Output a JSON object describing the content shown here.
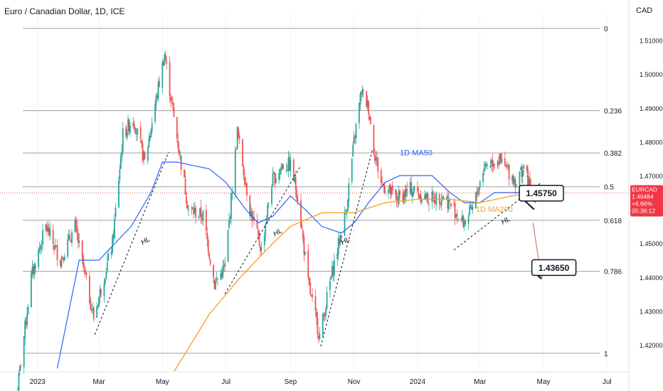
{
  "header": {
    "title": "Euro / Canadian Dollar, 1D, ICE",
    "currency": "CAD"
  },
  "colors": {
    "up": "#26a69a",
    "down": "#ef5350",
    "ma50": "#2962ff",
    "ma200": "#f5a623",
    "fib": "#9e9e9e",
    "price_line": "#f23645",
    "axis_text": "#131722"
  },
  "price_tag": {
    "symbol": "EURCAD",
    "price": "1.46484",
    "change": "+6.66%",
    "countdown": "05:36:12"
  },
  "chart_data": {
    "type": "candlestick",
    "title": "Euro / Canadian Dollar, 1D, ICE",
    "ylim": [
      1.412,
      1.5135
    ],
    "xlim": [
      "2022-12-11",
      "2024-07-22"
    ],
    "y_ticks": [
      "1.51000",
      "1.50000",
      "1.49000",
      "1.48000",
      "1.47000",
      "1.46000",
      "1.45000",
      "1.44000",
      "1.43000",
      "1.42000"
    ],
    "x_ticks": [
      {
        "label": "2023",
        "date": "2023-01-01"
      },
      {
        "label": "Mar",
        "date": "2023-03-01"
      },
      {
        "label": "May",
        "date": "2023-05-01"
      },
      {
        "label": "Jul",
        "date": "2023-07-01"
      },
      {
        "label": "Sep",
        "date": "2023-09-01"
      },
      {
        "label": "Nov",
        "date": "2023-11-01"
      },
      {
        "label": "2024",
        "date": "2024-01-01"
      },
      {
        "label": "Mar",
        "date": "2024-03-01"
      },
      {
        "label": "May",
        "date": "2024-05-01"
      },
      {
        "label": "Jul",
        "date": "2024-07-01"
      }
    ],
    "fib_levels": [
      {
        "label": "0",
        "price": 1.5135
      },
      {
        "label": "0.236",
        "price": 1.4892
      },
      {
        "label": "0.382",
        "price": 1.4767
      },
      {
        "label": "0.5",
        "price": 1.4667
      },
      {
        "label": "0.618",
        "price": 1.4568
      },
      {
        "label": "0.786",
        "price": 1.4417
      },
      {
        "label": "1",
        "price": 1.4175
      }
    ],
    "last_price": 1.46484,
    "price_anchors": [
      [
        "2022-12-12",
        1.405
      ],
      [
        "2022-12-26",
        1.44
      ],
      [
        "2023-01-09",
        1.455
      ],
      [
        "2023-01-23",
        1.445
      ],
      [
        "2023-02-06",
        1.455
      ],
      [
        "2023-02-24",
        1.428
      ],
      [
        "2023-03-14",
        1.45
      ],
      [
        "2023-03-24",
        1.482
      ],
      [
        "2023-04-03",
        1.487
      ],
      [
        "2023-04-14",
        1.474
      ],
      [
        "2023-04-27",
        1.496
      ],
      [
        "2023-05-03",
        1.506
      ],
      [
        "2023-05-12",
        1.487
      ],
      [
        "2023-05-26",
        1.46
      ],
      [
        "2023-06-09",
        1.458
      ],
      [
        "2023-06-20",
        1.438
      ],
      [
        "2023-06-30",
        1.443
      ],
      [
        "2023-07-12",
        1.483
      ],
      [
        "2023-07-24",
        1.46
      ],
      [
        "2023-08-04",
        1.448
      ],
      [
        "2023-08-14",
        1.468
      ],
      [
        "2023-08-24",
        1.473
      ],
      [
        "2023-09-01",
        1.473
      ],
      [
        "2023-09-08",
        1.464
      ],
      [
        "2023-09-18",
        1.438
      ],
      [
        "2023-09-29",
        1.4225
      ],
      [
        "2023-10-10",
        1.44
      ],
      [
        "2023-10-24",
        1.459
      ],
      [
        "2023-11-01",
        1.48
      ],
      [
        "2023-11-08",
        1.495
      ],
      [
        "2023-11-15",
        1.49
      ],
      [
        "2023-11-20",
        1.478
      ],
      [
        "2023-11-27",
        1.468
      ],
      [
        "2023-12-12",
        1.463
      ],
      [
        "2023-12-26",
        1.466
      ],
      [
        "2024-01-12",
        1.463
      ],
      [
        "2024-01-26",
        1.464
      ],
      [
        "2024-02-05",
        1.46
      ],
      [
        "2024-02-14",
        1.456
      ],
      [
        "2024-02-23",
        1.46
      ],
      [
        "2024-03-05",
        1.473
      ],
      [
        "2024-03-18",
        1.475
      ],
      [
        "2024-03-29",
        1.471
      ],
      [
        "2024-04-05",
        1.468
      ],
      [
        "2024-04-12",
        1.473
      ],
      [
        "2024-04-19",
        1.465
      ]
    ],
    "ma50_anchors": [
      [
        "2023-01-20",
        1.413
      ],
      [
        "2023-02-10",
        1.445
      ],
      [
        "2023-03-01",
        1.445
      ],
      [
        "2023-04-01",
        1.455
      ],
      [
        "2023-04-20",
        1.465
      ],
      [
        "2023-05-01",
        1.474
      ],
      [
        "2023-05-15",
        1.474
      ],
      [
        "2023-06-15",
        1.472
      ],
      [
        "2023-07-01",
        1.468
      ],
      [
        "2023-07-20",
        1.46
      ],
      [
        "2023-08-01",
        1.456
      ],
      [
        "2023-08-15",
        1.458
      ],
      [
        "2023-09-01",
        1.464
      ],
      [
        "2023-09-15",
        1.46
      ],
      [
        "2023-10-01",
        1.455
      ],
      [
        "2023-10-20",
        1.453
      ],
      [
        "2023-11-01",
        1.456
      ],
      [
        "2023-11-15",
        1.462
      ],
      [
        "2023-12-01",
        1.468
      ],
      [
        "2023-12-15",
        1.47
      ],
      [
        "2024-01-01",
        1.47
      ],
      [
        "2024-01-15",
        1.47
      ],
      [
        "2024-02-01",
        1.465
      ],
      [
        "2024-02-15",
        1.462
      ],
      [
        "2024-03-01",
        1.462
      ],
      [
        "2024-03-15",
        1.465
      ],
      [
        "2024-04-01",
        1.465
      ],
      [
        "2024-04-19",
        1.465
      ]
    ],
    "ma200_anchors": [
      [
        "2023-05-12",
        1.412
      ],
      [
        "2023-06-15",
        1.429
      ],
      [
        "2023-07-15",
        1.44
      ],
      [
        "2023-08-15",
        1.45
      ],
      [
        "2023-09-01",
        1.455
      ],
      [
        "2023-10-01",
        1.459
      ],
      [
        "2023-11-01",
        1.459
      ],
      [
        "2023-12-01",
        1.462
      ],
      [
        "2024-01-01",
        1.463
      ],
      [
        "2024-02-01",
        1.463
      ],
      [
        "2024-03-01",
        1.462
      ],
      [
        "2024-04-01",
        1.464
      ],
      [
        "2024-04-19",
        1.465
      ]
    ],
    "trendlines": [
      {
        "from": [
          "2023-02-25",
          1.423
        ],
        "to": [
          "2023-05-07",
          1.477
        ]
      },
      {
        "from": [
          "2023-06-30",
          1.435
        ],
        "to": [
          "2023-09-11",
          1.473
        ]
      },
      {
        "from": [
          "2023-09-30",
          1.4195
        ],
        "to": [
          "2023-11-19",
          1.478
        ]
      },
      {
        "from": [
          "2024-02-05",
          1.448
        ],
        "to": [
          "2024-04-29",
          1.468
        ]
      }
    ],
    "arrows": [
      {
        "from": [
          "2024-04-15",
          1.47
        ],
        "to": [
          "2024-04-23",
          1.462
        ]
      },
      {
        "from": [
          "2024-04-21",
          1.456
        ],
        "to": [
          "2024-04-29",
          1.4395
        ]
      }
    ],
    "annotations": [
      {
        "text": "HL",
        "x": "2023-04-12",
        "y": 1.4495,
        "color": "#131722"
      },
      {
        "text": "HL",
        "x": "2023-08-17",
        "y": 1.452,
        "color": "#131722"
      },
      {
        "text": "HL",
        "x": "2023-10-21",
        "y": 1.4495,
        "color": "#131722"
      },
      {
        "text": "HL",
        "x": "2024-03-23",
        "y": 1.4555,
        "color": "#131722"
      },
      {
        "text": "1D MA50",
        "x": "2023-12-15",
        "y": 1.476,
        "color": "#2962ff"
      },
      {
        "text": "1D MA200",
        "x": "2024-02-26",
        "y": 1.4593,
        "color": "#f5a623"
      }
    ],
    "callouts": [
      {
        "text": "1.45750",
        "x": "2024-04-29",
        "y": 1.4648,
        "pointer": [
          "2024-04-22",
          1.46
        ]
      },
      {
        "text": "1.43650",
        "x": "2024-05-11",
        "y": 1.4428,
        "pointer": [
          "2024-04-29",
          1.4395
        ]
      }
    ]
  }
}
